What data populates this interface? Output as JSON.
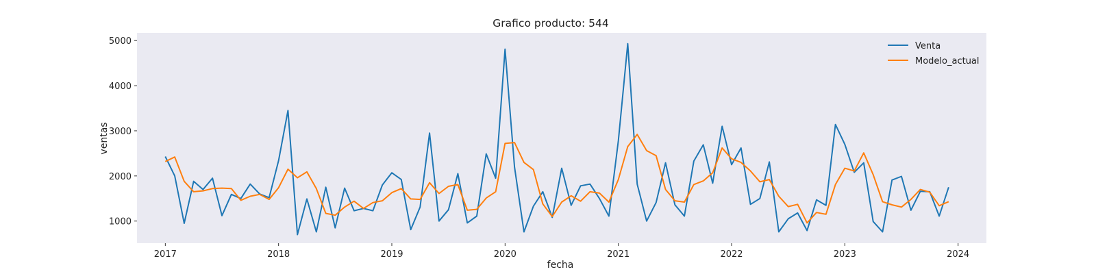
{
  "chart_data": {
    "type": "line",
    "title": "Grafico producto: 544",
    "xlabel": "fecha",
    "ylabel": "ventas",
    "x_start": "2017-01",
    "x_ticks": [
      "2017",
      "2018",
      "2019",
      "2020",
      "2021",
      "2022",
      "2023",
      "2024"
    ],
    "y_ticks": [
      1000,
      2000,
      3000,
      4000,
      5000
    ],
    "xlim": [
      "2016-10",
      "2024-04"
    ],
    "ylim": [
      510,
      5170
    ],
    "grid": false,
    "legend_position": "top-right",
    "colors": {
      "plot_background": "#eaeaf2",
      "venta": "#1f77b4",
      "modelo": "#ff7f0e"
    },
    "series": [
      {
        "name": "Venta",
        "values": [
          2430,
          2000,
          950,
          1880,
          1700,
          1950,
          1120,
          1590,
          1500,
          1820,
          1600,
          1520,
          2340,
          3450,
          700,
          1490,
          760,
          1750,
          850,
          1730,
          1230,
          1280,
          1230,
          1800,
          2070,
          1920,
          810,
          1310,
          2950,
          1000,
          1250,
          2050,
          960,
          1110,
          2490,
          1950,
          4810,
          2200,
          760,
          1330,
          1650,
          1080,
          2170,
          1350,
          1780,
          1820,
          1500,
          1110,
          2780,
          4930,
          1820,
          1000,
          1410,
          2290,
          1360,
          1110,
          2330,
          2690,
          1840,
          3100,
          2250,
          2620,
          1370,
          1500,
          2310,
          760,
          1050,
          1180,
          790,
          1470,
          1350,
          3140,
          2700,
          2080,
          2290,
          990,
          760,
          1910,
          1990,
          1240,
          1660,
          1650,
          1110,
          1750
        ]
      },
      {
        "name": "Modelo_actual",
        "values": [
          2320,
          2420,
          1880,
          1650,
          1670,
          1720,
          1730,
          1720,
          1460,
          1550,
          1590,
          1480,
          1740,
          2150,
          1960,
          2090,
          1720,
          1170,
          1130,
          1310,
          1440,
          1280,
          1410,
          1450,
          1630,
          1720,
          1490,
          1480,
          1850,
          1610,
          1770,
          1810,
          1240,
          1260,
          1510,
          1650,
          2720,
          2740,
          2300,
          2140,
          1380,
          1100,
          1420,
          1560,
          1440,
          1650,
          1620,
          1420,
          1920,
          2650,
          2920,
          2560,
          2450,
          1700,
          1450,
          1420,
          1810,
          1890,
          2070,
          2620,
          2380,
          2300,
          2110,
          1870,
          1920,
          1550,
          1320,
          1370,
          960,
          1190,
          1150,
          1810,
          2170,
          2110,
          2510,
          2030,
          1430,
          1360,
          1310,
          1480,
          1700,
          1640,
          1340,
          1430
        ]
      }
    ]
  }
}
